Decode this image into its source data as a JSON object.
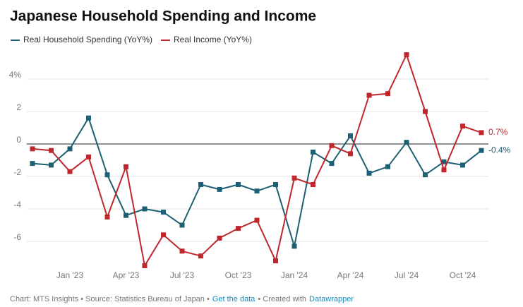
{
  "chart_data": {
    "type": "line",
    "title": "Japanese Household Spending and Income",
    "footer": [
      "Chart: MTS Insights • Source: Statistics Bureau of Japan •",
      "Get the data",
      "• Created with",
      "Datawrapper"
    ],
    "categories": [
      null,
      null,
      "Jan '23",
      null,
      null,
      "Apr '23",
      null,
      null,
      "Jul '23",
      null,
      null,
      "Oct '23",
      null,
      null,
      "Jan '24",
      null,
      null,
      "Apr '24",
      null,
      null,
      "Jul '24",
      null,
      null,
      "Oct '24",
      null
    ],
    "series": [
      {
        "name": "Real Household Spending (YoY%)",
        "color": "#1d5f74",
        "values": [
          -1.2,
          -1.3,
          -0.3,
          1.6,
          -1.9,
          -4.4,
          -4.0,
          -4.2,
          -5.0,
          -2.5,
          -2.8,
          -2.5,
          -2.9,
          -2.5,
          -6.3,
          -0.5,
          -1.2,
          0.5,
          -1.8,
          -1.4,
          0.1,
          -1.9,
          -1.1,
          -1.3,
          -0.4
        ],
        "value_labels": [
          null,
          null,
          null,
          null,
          null,
          null,
          null,
          null,
          null,
          null,
          null,
          null,
          null,
          null,
          null,
          null,
          null,
          null,
          null,
          null,
          null,
          null,
          null,
          null,
          "-0.4%"
        ]
      },
      {
        "name": "Real Income (YoY%)",
        "color": "#c0272d",
        "values": [
          -0.3,
          -0.4,
          -1.7,
          -0.8,
          -4.5,
          -1.4,
          -7.5,
          -5.6,
          -6.6,
          -6.9,
          -5.8,
          -5.2,
          -4.7,
          -7.2,
          -2.1,
          -2.5,
          -0.1,
          -0.6,
          3.0,
          3.1,
          5.5,
          2.0,
          -1.6,
          1.1,
          0.7
        ],
        "value_labels": [
          null,
          null,
          null,
          null,
          null,
          null,
          null,
          null,
          null,
          null,
          null,
          null,
          null,
          null,
          null,
          null,
          null,
          null,
          null,
          null,
          null,
          null,
          null,
          null,
          "0.7%"
        ]
      }
    ],
    "ylim": [
      -7.8,
      5.8
    ],
    "yticks": [
      -6,
      -4,
      -2,
      0,
      2,
      {
        "value": 4,
        "label": "4%"
      }
    ],
    "grid": true
  }
}
